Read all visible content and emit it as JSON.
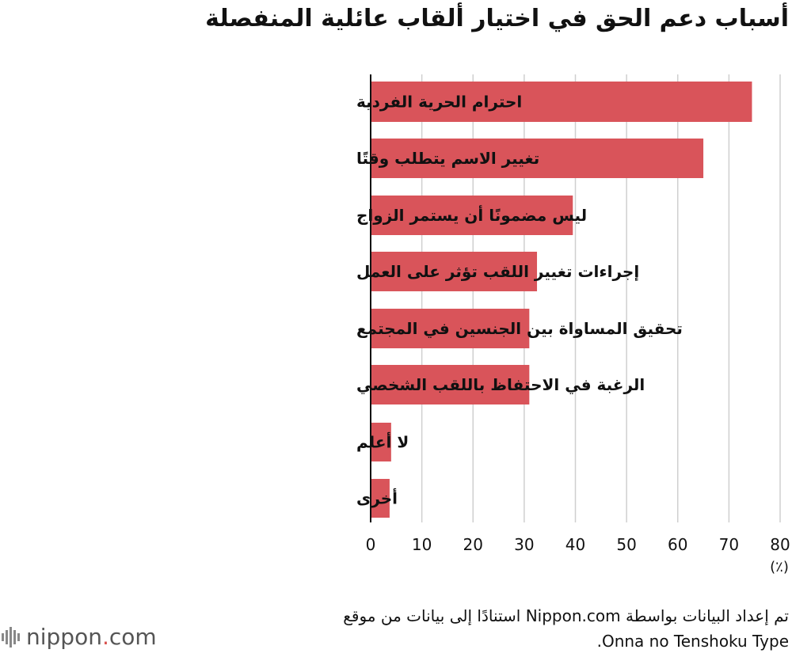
{
  "title": "أسباب دعم الحق في اختيار ألقاب عائلية المنفصلة",
  "chart_data": {
    "type": "bar",
    "orientation": "horizontal",
    "categories": [
      "احترام الحرية الفردية",
      "تغيير الاسم يتطلب وقتًا",
      "ليس مضمونًا أن يستمر الزواج",
      "إجراءات تغيير اللقب تؤثر على العمل",
      "تحقيق المساواة بين الجنسين في المجتمع",
      "الرغبة في الاحتفاظ باللقب الشخصي",
      "لا أعلم",
      "أخرى"
    ],
    "values": [
      74.5,
      65,
      39.5,
      32.5,
      31,
      31,
      4,
      3.7
    ],
    "xlim": [
      0,
      80
    ],
    "xticks": [
      0,
      10,
      20,
      30,
      40,
      50,
      60,
      70,
      80
    ],
    "xlabel": "(٪)",
    "grid": true,
    "bar_color": "#d9545a"
  },
  "source": {
    "line1": "تم إعداد البيانات بواسطة Nippon.com استنادًا إلى بيانات من موقع",
    "line2": "Onna no Tenshoku Type."
  },
  "logo": {
    "name": "nippon",
    "dot": ".",
    "suffix": "com"
  }
}
